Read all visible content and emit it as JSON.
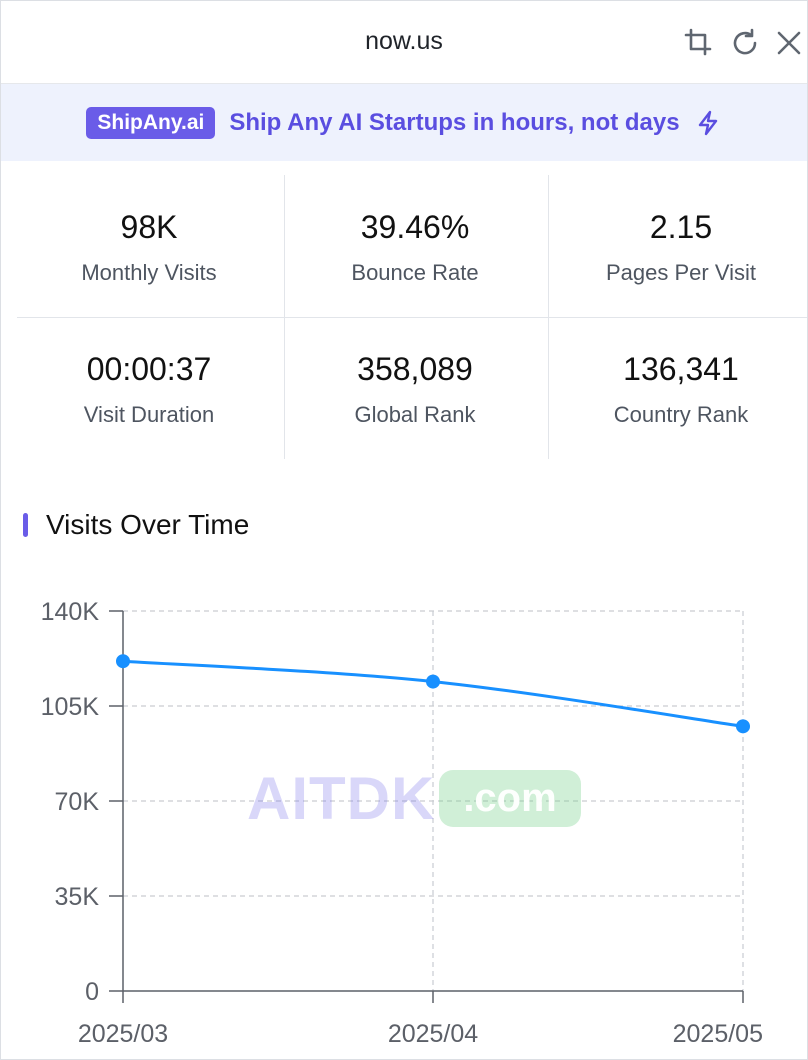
{
  "window": {
    "title": "now.us"
  },
  "banner": {
    "badge": "ShipAny.ai",
    "text": "Ship Any AI Startups in hours, not days"
  },
  "stats": [
    {
      "value": "98K",
      "label": "Monthly Visits"
    },
    {
      "value": "39.46%",
      "label": "Bounce Rate"
    },
    {
      "value": "2.15",
      "label": "Pages Per Visit"
    },
    {
      "value": "00:00:37",
      "label": "Visit Duration"
    },
    {
      "value": "358,089",
      "label": "Global Rank"
    },
    {
      "value": "136,341",
      "label": "Country Rank"
    }
  ],
  "section": {
    "title": "Visits Over Time"
  },
  "watermark": {
    "text": "AITDK",
    "pill": ".com"
  },
  "colors": {
    "accent": "#6a5ce8",
    "line": "#1890ff",
    "banner_bg": "#eef2fd"
  },
  "chart_data": {
    "type": "line",
    "title": "Visits Over Time",
    "categories": [
      "2025/03",
      "2025/04",
      "2025/05"
    ],
    "series": [
      {
        "name": "Visits",
        "values": [
          121500,
          114000,
          97500
        ]
      }
    ],
    "ylim": [
      0,
      140000
    ],
    "yticks": [
      0,
      35000,
      70000,
      105000,
      140000
    ],
    "ytick_labels": [
      "0",
      "35K",
      "70K",
      "105K",
      "140K"
    ],
    "xlabel": "",
    "ylabel": "",
    "grid": true
  }
}
